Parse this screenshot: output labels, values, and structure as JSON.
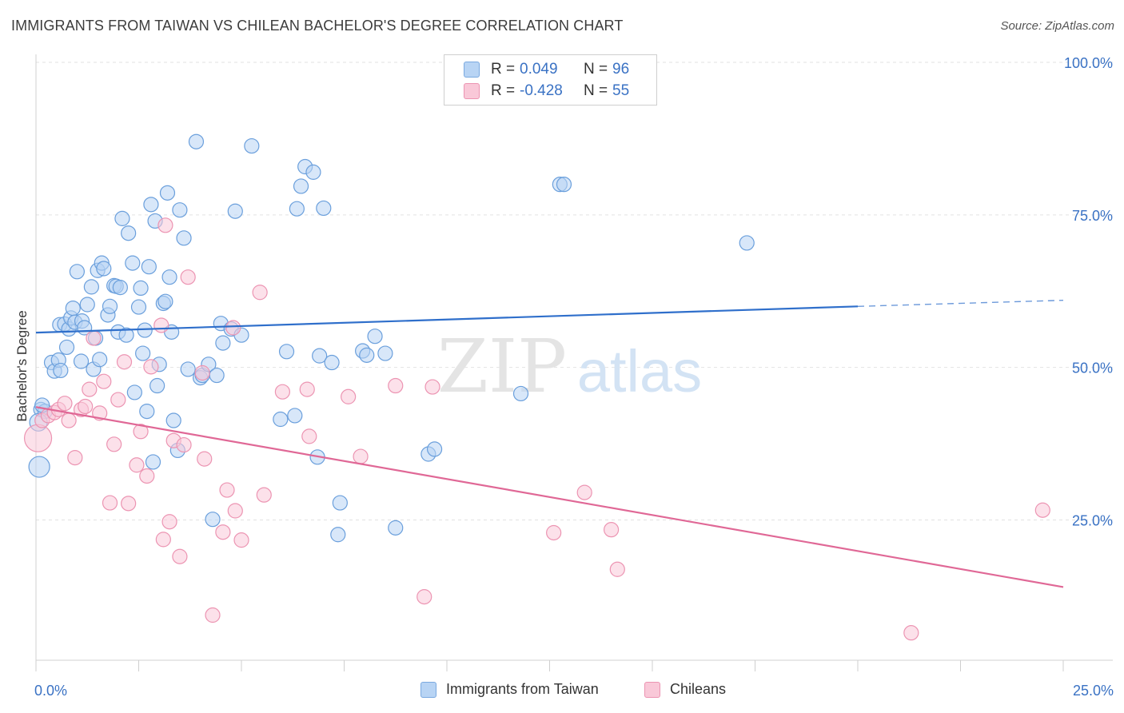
{
  "title": "IMMIGRANTS FROM TAIWAN VS CHILEAN BACHELOR'S DEGREE CORRELATION CHART",
  "source": "Source: ZipAtlas.com",
  "watermark": {
    "zip": "ZIP",
    "atlas": "atlas"
  },
  "colors": {
    "blue": "#3a72c4",
    "blue_fill": "#b8d4f4",
    "blue_stroke": "#6a9fdc",
    "pink": "#e06896",
    "pink_fill": "#f9c8d8",
    "pink_stroke": "#ec94b2"
  },
  "legend": {
    "rows": [
      {
        "r_label": "R =",
        "r_value": "0.049",
        "n_label": "N =",
        "n_value": "96"
      },
      {
        "r_label": "R =",
        "r_value": "-0.428",
        "n_label": "N =",
        "n_value": "55"
      }
    ]
  },
  "bottom_legend": {
    "series1": "Immigrants from Taiwan",
    "series2": "Chileans"
  },
  "chart_data": {
    "type": "scatter",
    "title": "IMMIGRANTS FROM TAIWAN VS CHILEAN BACHELOR'S DEGREE CORRELATION CHART",
    "xlabel": "",
    "ylabel": "Bachelor's Degree",
    "xlim": [
      0,
      25
    ],
    "ylim": [
      2,
      100
    ],
    "x_tick_labels": {
      "min": "0.0%",
      "max": "25.0%"
    },
    "y_ticks": [
      {
        "value": 100,
        "label": "100.0%"
      },
      {
        "value": 75,
        "label": "75.0%"
      },
      {
        "value": 50,
        "label": "50.0%"
      },
      {
        "value": 25,
        "label": "25.0%"
      }
    ],
    "series": [
      {
        "name": "Immigrants from Taiwan",
        "r": 0.049,
        "n": 96,
        "trend": {
          "x0": 0.0,
          "y0": 55.7,
          "x1": 20.0,
          "y1": 60.0,
          "dash_to_x": 25.0,
          "dash_to_y": 61.0
        },
        "points": [
          [
            0.12,
            43.1
          ],
          [
            0.22,
            42.8
          ],
          [
            0.38,
            50.8
          ],
          [
            0.45,
            49.4
          ],
          [
            0.55,
            51.2
          ],
          [
            0.58,
            57.0
          ],
          [
            0.6,
            49.5
          ],
          [
            0.7,
            57.1
          ],
          [
            0.75,
            53.3
          ],
          [
            0.8,
            56.3
          ],
          [
            0.85,
            58.1
          ],
          [
            0.9,
            59.7
          ],
          [
            0.95,
            57.4
          ],
          [
            1.0,
            65.7
          ],
          [
            1.1,
            51.0
          ],
          [
            1.12,
            57.6
          ],
          [
            1.18,
            56.5
          ],
          [
            1.25,
            60.3
          ],
          [
            1.35,
            63.2
          ],
          [
            1.4,
            49.7
          ],
          [
            1.45,
            54.8
          ],
          [
            1.5,
            65.9
          ],
          [
            1.55,
            51.3
          ],
          [
            1.6,
            67.1
          ],
          [
            1.65,
            66.2
          ],
          [
            1.75,
            58.6
          ],
          [
            1.8,
            60.0
          ],
          [
            1.9,
            63.4
          ],
          [
            1.95,
            63.3
          ],
          [
            2.0,
            55.8
          ],
          [
            2.05,
            63.1
          ],
          [
            2.1,
            74.4
          ],
          [
            2.2,
            55.3
          ],
          [
            2.25,
            72.0
          ],
          [
            2.35,
            67.1
          ],
          [
            2.4,
            45.9
          ],
          [
            2.5,
            59.9
          ],
          [
            2.55,
            63.0
          ],
          [
            2.6,
            52.3
          ],
          [
            2.65,
            56.1
          ],
          [
            2.7,
            42.8
          ],
          [
            2.75,
            66.5
          ],
          [
            2.8,
            76.7
          ],
          [
            2.85,
            34.5
          ],
          [
            2.9,
            74.0
          ],
          [
            2.95,
            47.0
          ],
          [
            3.0,
            50.5
          ],
          [
            3.1,
            60.5
          ],
          [
            3.15,
            60.8
          ],
          [
            3.2,
            78.6
          ],
          [
            3.25,
            64.8
          ],
          [
            3.3,
            55.8
          ],
          [
            3.35,
            41.3
          ],
          [
            3.45,
            36.4
          ],
          [
            3.5,
            75.8
          ],
          [
            3.6,
            71.2
          ],
          [
            3.7,
            49.7
          ],
          [
            3.9,
            87.0
          ],
          [
            4.0,
            48.3
          ],
          [
            4.05,
            48.7
          ],
          [
            4.2,
            50.5
          ],
          [
            4.3,
            25.1
          ],
          [
            4.4,
            48.7
          ],
          [
            4.5,
            57.2
          ],
          [
            4.55,
            54.0
          ],
          [
            4.75,
            56.3
          ],
          [
            4.85,
            75.6
          ],
          [
            5.0,
            55.3
          ],
          [
            5.25,
            86.3
          ],
          [
            5.95,
            41.5
          ],
          [
            6.1,
            52.6
          ],
          [
            6.3,
            42.1
          ],
          [
            6.35,
            76.0
          ],
          [
            6.45,
            79.7
          ],
          [
            6.55,
            82.9
          ],
          [
            6.75,
            82.0
          ],
          [
            6.85,
            35.3
          ],
          [
            6.9,
            51.9
          ],
          [
            7.0,
            76.1
          ],
          [
            7.2,
            50.8
          ],
          [
            7.4,
            27.8
          ],
          [
            7.35,
            22.6
          ],
          [
            7.95,
            52.7
          ],
          [
            8.05,
            52.0
          ],
          [
            8.25,
            55.1
          ],
          [
            8.5,
            52.3
          ],
          [
            8.75,
            23.7
          ],
          [
            9.55,
            35.8
          ],
          [
            9.7,
            36.6
          ],
          [
            11.8,
            45.7
          ],
          [
            12.75,
            80.0
          ],
          [
            12.85,
            80.0
          ],
          [
            17.3,
            70.4
          ],
          [
            0.06,
            41.0
          ],
          [
            0.08,
            33.7
          ],
          [
            0.15,
            43.8
          ]
        ]
      },
      {
        "name": "Chileans",
        "r": -0.428,
        "n": 55,
        "trend": {
          "x0": 0.0,
          "y0": 43.5,
          "x1": 25.0,
          "y1": 14.0
        },
        "points": [
          [
            0.05,
            38.4
          ],
          [
            0.15,
            41.3
          ],
          [
            0.3,
            42.1
          ],
          [
            0.45,
            42.6
          ],
          [
            0.55,
            43.1
          ],
          [
            0.7,
            44.1
          ],
          [
            0.8,
            41.3
          ],
          [
            0.95,
            35.2
          ],
          [
            1.1,
            43.1
          ],
          [
            1.2,
            43.6
          ],
          [
            1.3,
            46.4
          ],
          [
            1.4,
            54.8
          ],
          [
            1.55,
            42.5
          ],
          [
            1.65,
            47.7
          ],
          [
            1.8,
            27.8
          ],
          [
            1.9,
            37.4
          ],
          [
            2.0,
            44.7
          ],
          [
            2.15,
            50.9
          ],
          [
            2.25,
            27.7
          ],
          [
            2.45,
            34.0
          ],
          [
            2.55,
            39.5
          ],
          [
            2.7,
            32.2
          ],
          [
            2.8,
            50.1
          ],
          [
            3.05,
            56.9
          ],
          [
            3.1,
            21.8
          ],
          [
            3.15,
            73.3
          ],
          [
            3.25,
            24.7
          ],
          [
            3.35,
            38.0
          ],
          [
            3.5,
            19.0
          ],
          [
            3.6,
            37.3
          ],
          [
            3.7,
            64.8
          ],
          [
            4.05,
            49.1
          ],
          [
            4.1,
            35.0
          ],
          [
            4.3,
            9.4
          ],
          [
            4.55,
            23.0
          ],
          [
            4.65,
            29.9
          ],
          [
            4.8,
            56.5
          ],
          [
            4.85,
            26.5
          ],
          [
            5.0,
            21.7
          ],
          [
            5.45,
            62.3
          ],
          [
            5.55,
            29.1
          ],
          [
            6.0,
            46.0
          ],
          [
            6.6,
            46.4
          ],
          [
            6.65,
            38.7
          ],
          [
            7.6,
            45.2
          ],
          [
            7.9,
            35.4
          ],
          [
            8.75,
            47.0
          ],
          [
            9.45,
            12.4
          ],
          [
            9.65,
            46.8
          ],
          [
            12.6,
            22.9
          ],
          [
            13.35,
            29.5
          ],
          [
            14.0,
            23.4
          ],
          [
            14.15,
            16.9
          ],
          [
            21.3,
            6.5
          ],
          [
            24.5,
            26.6
          ]
        ]
      }
    ]
  }
}
